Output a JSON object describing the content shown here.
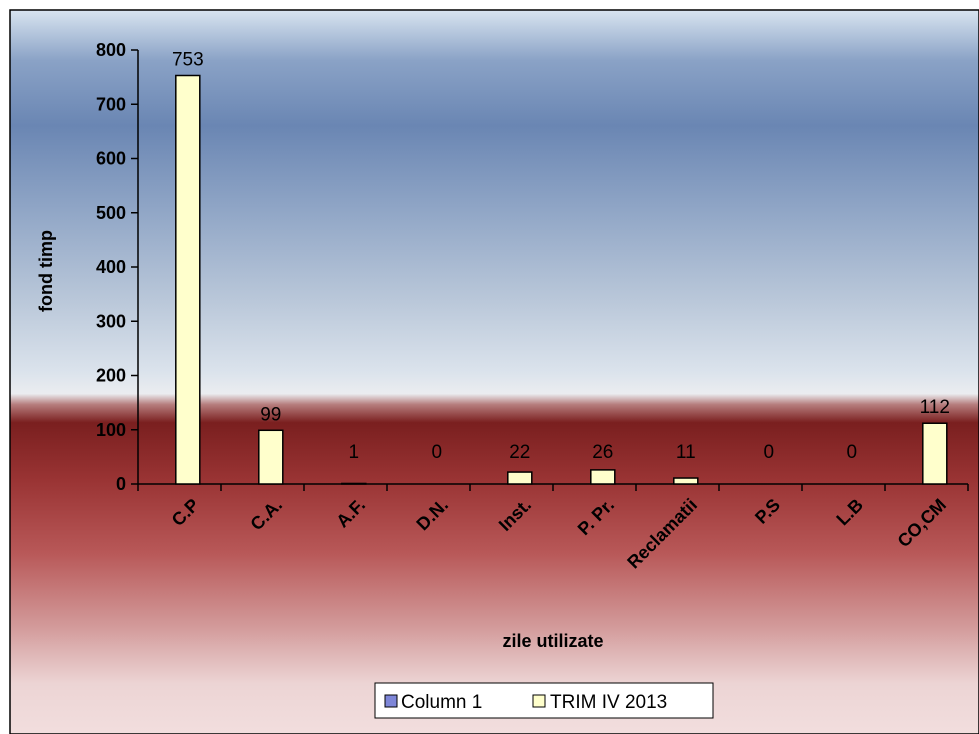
{
  "colors": {
    "bar_fill": "#ffffcc",
    "bar_stroke": "#000000",
    "series1_fill": "#7e86d8",
    "bg_top": "#d6e2ef",
    "bg_blue": "#6d8ab6",
    "bg_dark_red": "#7e2323",
    "bg_bottom": "#f0dcdc"
  },
  "legend": {
    "position": "bottom",
    "items": [
      {
        "name": "Column 1",
        "color": "#7e86d8"
      },
      {
        "name": "TRIM IV 2013",
        "color": "#ffffcc"
      }
    ]
  },
  "chart_data": {
    "type": "bar",
    "xlabel": "zile utilizate",
    "ylabel": "fond timp",
    "ylim": [
      0,
      800
    ],
    "yticks": [
      0,
      100,
      200,
      300,
      400,
      500,
      600,
      700,
      800
    ],
    "categories": [
      "C.P",
      "C.A.",
      "A.F.",
      "D.N.",
      "Inst.",
      "P. Pr.",
      "Reclamatii",
      "P.S",
      "L.B",
      "CO,CM"
    ],
    "series": [
      {
        "name": "Column 1",
        "values": [
          null,
          null,
          null,
          null,
          null,
          null,
          null,
          null,
          null,
          null
        ]
      },
      {
        "name": "TRIM IV 2013",
        "values": [
          753,
          99,
          1,
          0,
          22,
          26,
          11,
          0,
          0,
          112
        ]
      }
    ],
    "data_labels": [
      "753",
      "99",
      "1",
      "0",
      "22",
      "26",
      "11",
      "0",
      "0",
      "112"
    ]
  }
}
